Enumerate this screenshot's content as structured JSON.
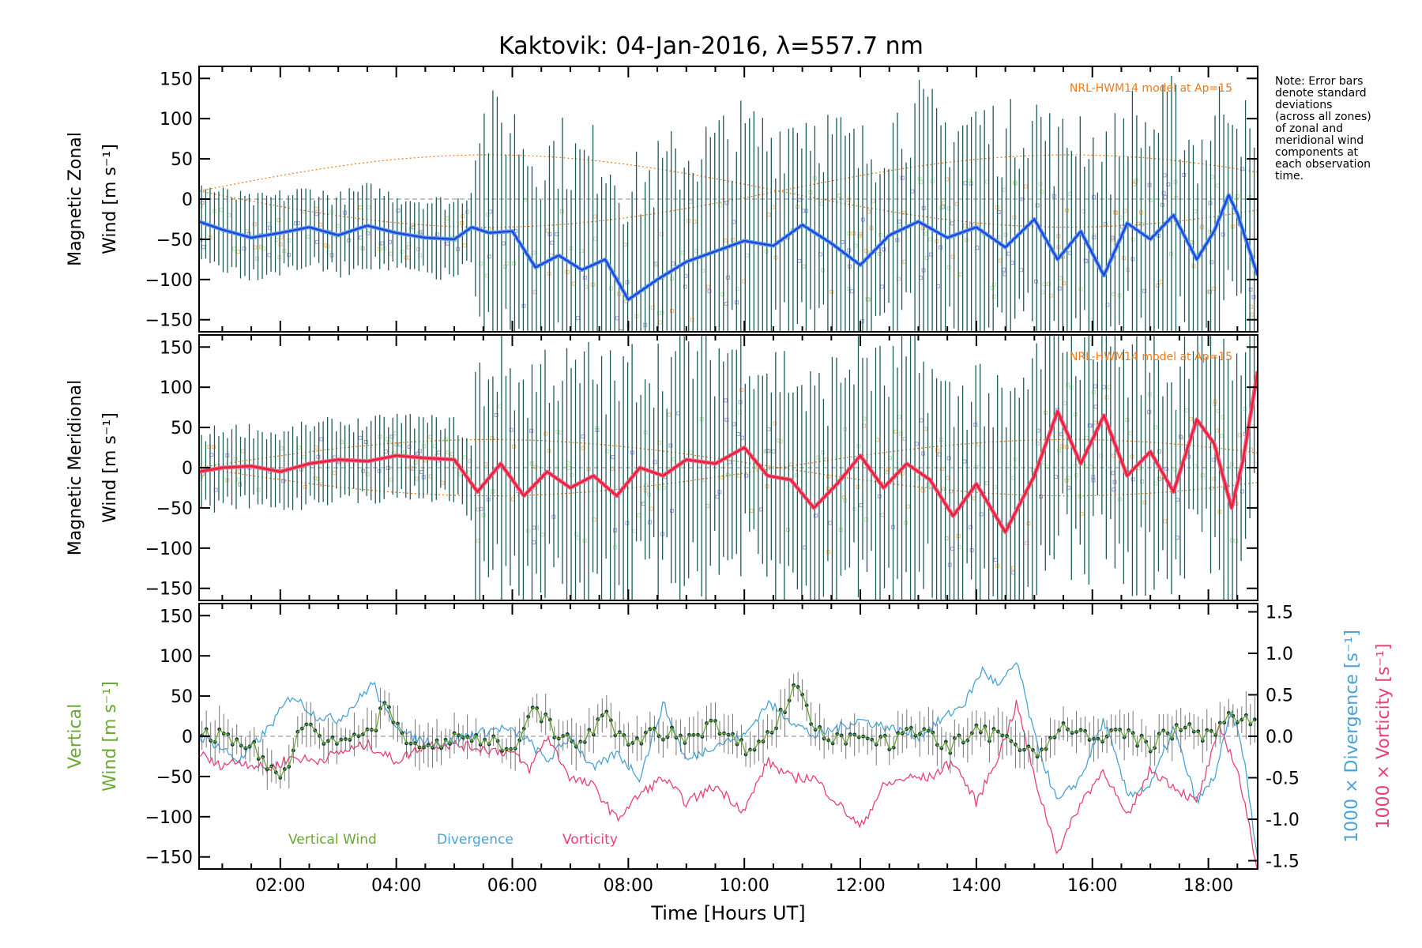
{
  "title": "Kaktovik: 04-Jan-2016, λ=557.7 nm",
  "note_lines": [
    "Note: Error bars",
    "denote standard",
    "deviations",
    "(across all zones)",
    "of zonal and",
    "meridional wind",
    "components at",
    "each observation",
    "time."
  ],
  "colors": {
    "zonal": "#1f3fe0",
    "zonal_light": "#5aa0e6",
    "meridional": "#e8202a",
    "meridional_light": "#f05a8a",
    "errorbar": "#1f5a5a",
    "vertical": "#6aa832",
    "divergence": "#4aa3d6",
    "vorticity": "#e8407a",
    "model": "#f07a1a",
    "scatter_orange": "#f5c07a",
    "scatter_green": "#b8e8a8",
    "scatter_purple": "#a0a0e0"
  },
  "chart_data": [
    {
      "type": "line",
      "panel": "zonal",
      "ylabel_line1": "Magnetic Zonal",
      "ylabel_line2": "Wind [m s⁻¹]",
      "ylim": [
        -165,
        165
      ],
      "yticks": [
        -150,
        -100,
        -50,
        0,
        50,
        100,
        150
      ],
      "xlim": [
        0.6,
        18.85
      ],
      "model_label": "NRL-HWM14 model at Ap=15",
      "series": [
        {
          "x": [
            0.6,
            1.0,
            1.5,
            2.0,
            2.5,
            3.0,
            3.5,
            4.0,
            4.5,
            5.0,
            5.3,
            5.6,
            6.0,
            6.4,
            6.8,
            7.2,
            7.6,
            8.0,
            8.5,
            9.0,
            9.5,
            10.0,
            10.5,
            11.0,
            11.5,
            12.0,
            12.5,
            13.0,
            13.5,
            14.0,
            14.5,
            15.0,
            15.4,
            15.8,
            16.2,
            16.6,
            17.0,
            17.4,
            17.8,
            18.1,
            18.35,
            18.5,
            18.85
          ],
          "values": [
            -28,
            -38,
            -48,
            -42,
            -35,
            -45,
            -33,
            -42,
            -48,
            -50,
            -35,
            -42,
            -40,
            -85,
            -70,
            -88,
            -75,
            -125,
            -100,
            -78,
            -65,
            -52,
            -58,
            -32,
            -55,
            -82,
            -45,
            -28,
            -48,
            -35,
            -60,
            -25,
            -75,
            -40,
            -95,
            -30,
            -50,
            -20,
            -75,
            -40,
            5,
            -18,
            -95
          ]
        }
      ]
    },
    {
      "type": "line",
      "panel": "meridional",
      "ylabel_line1": "Magnetic Meridional",
      "ylabel_line2": "Wind [m s⁻¹]",
      "ylim": [
        -165,
        165
      ],
      "yticks": [
        -150,
        -100,
        -50,
        0,
        50,
        100,
        150
      ],
      "xlim": [
        0.6,
        18.85
      ],
      "model_label": "NRL-HWM14 model at Ap=15",
      "series": [
        {
          "x": [
            0.6,
            1.0,
            1.5,
            2.0,
            2.5,
            3.0,
            3.5,
            4.0,
            4.5,
            5.0,
            5.4,
            5.8,
            6.2,
            6.6,
            7.0,
            7.4,
            7.8,
            8.2,
            8.6,
            9.0,
            9.5,
            10.0,
            10.4,
            10.8,
            11.2,
            11.6,
            12.0,
            12.4,
            12.8,
            13.2,
            13.6,
            14.0,
            14.5,
            15.0,
            15.4,
            15.8,
            16.2,
            16.6,
            17.0,
            17.4,
            17.8,
            18.1,
            18.4,
            18.6,
            18.85
          ],
          "values": [
            -5,
            0,
            2,
            -5,
            5,
            10,
            8,
            15,
            12,
            10,
            -30,
            5,
            -35,
            -5,
            -25,
            -10,
            -35,
            0,
            -10,
            10,
            5,
            25,
            -10,
            -15,
            -50,
            -20,
            15,
            -25,
            5,
            -15,
            -60,
            -20,
            -80,
            -10,
            70,
            5,
            65,
            -10,
            20,
            -30,
            60,
            30,
            -50,
            10,
            120
          ]
        }
      ]
    },
    {
      "type": "line",
      "panel": "vertical",
      "ylabel_line1": "Vertical",
      "ylabel_line2": "Wind [m s⁻¹]",
      "ylim": [
        -165,
        165
      ],
      "yticks": [
        -150,
        -100,
        -50,
        0,
        50,
        100,
        150
      ],
      "y2label_div": "1000 × Divergence [s⁻¹]",
      "y2label_vort": "1000 × Vorticity [s⁻¹]",
      "y2lim": [
        -1.6,
        1.6
      ],
      "y2ticks": [
        -1.5,
        -1.0,
        -0.5,
        0.0,
        0.5,
        1.0,
        1.5
      ],
      "xlim": [
        0.6,
        18.85
      ],
      "xticks": [
        2,
        4,
        6,
        8,
        10,
        12,
        14,
        16,
        18
      ],
      "xticklabels": [
        "02:00",
        "04:00",
        "06:00",
        "08:00",
        "10:00",
        "12:00",
        "14:00",
        "16:00",
        "18:00"
      ],
      "xlabel": "Time [Hours UT]",
      "legend": [
        "Vertical Wind",
        "Divergence",
        "Vorticity"
      ],
      "series": [
        {
          "name": "Vertical Wind",
          "x": [
            0.6,
            1.0,
            1.5,
            2.0,
            2.4,
            2.8,
            3.2,
            3.6,
            3.8,
            4.2,
            4.8,
            5.2,
            5.6,
            6.0,
            6.4,
            6.8,
            7.2,
            7.6,
            8.0,
            8.5,
            9.0,
            9.5,
            10.0,
            10.5,
            10.9,
            11.2,
            11.6,
            12.0,
            12.5,
            13.0,
            13.5,
            14.0,
            14.5,
            15.0,
            15.5,
            16.0,
            16.5,
            17.0,
            17.5,
            18.0,
            18.4,
            18.85
          ],
          "values": [
            5,
            0,
            -10,
            -55,
            15,
            -10,
            0,
            5,
            40,
            -10,
            -10,
            0,
            -5,
            -15,
            35,
            0,
            -10,
            25,
            -10,
            5,
            0,
            15,
            -15,
            5,
            70,
            10,
            -5,
            5,
            -10,
            10,
            -15,
            5,
            0,
            -20,
            10,
            -5,
            5,
            -10,
            10,
            0,
            30,
            10
          ]
        },
        {
          "name": "Divergence",
          "x": [
            0.6,
            0.9,
            1.3,
            1.8,
            2.2,
            2.6,
            3.0,
            3.3,
            3.6,
            3.8,
            4.2,
            4.8,
            5.2,
            5.8,
            6.2,
            6.6,
            7.0,
            7.4,
            7.8,
            8.2,
            8.6,
            9.0,
            9.5,
            10.0,
            10.4,
            10.8,
            11.2,
            11.6,
            12.0,
            12.5,
            13.0,
            13.4,
            13.8,
            14.1,
            14.4,
            14.7,
            15.0,
            15.4,
            15.8,
            16.2,
            16.6,
            17.0,
            17.4,
            17.8,
            18.1,
            18.4,
            18.6,
            18.85
          ],
          "values": [
            0.0,
            -0.1,
            -0.3,
            0.1,
            0.5,
            0.25,
            0.2,
            0.4,
            0.65,
            0.3,
            0.0,
            -0.1,
            0.0,
            0.1,
            0.0,
            -0.3,
            0.0,
            -0.4,
            -0.2,
            -0.5,
            0.4,
            -0.3,
            -0.1,
            0.0,
            0.4,
            0.2,
            0.0,
            0.1,
            0.2,
            0.1,
            0.0,
            0.2,
            0.4,
            0.8,
            0.6,
            0.9,
            0.0,
            -0.8,
            -0.5,
            0.2,
            -0.7,
            -0.6,
            0.1,
            -0.8,
            -0.5,
            0.3,
            -0.2,
            -1.5
          ]
        },
        {
          "name": "Vorticity",
          "x": [
            0.6,
            0.9,
            1.3,
            1.8,
            2.2,
            2.6,
            3.0,
            3.5,
            4.0,
            4.5,
            5.0,
            5.5,
            6.0,
            6.3,
            6.6,
            7.0,
            7.4,
            7.8,
            8.2,
            8.6,
            9.0,
            9.5,
            10.0,
            10.4,
            10.8,
            11.2,
            11.6,
            12.0,
            12.4,
            12.8,
            13.2,
            13.6,
            14.0,
            14.4,
            14.7,
            15.0,
            15.4,
            15.8,
            16.2,
            16.6,
            17.0,
            17.4,
            17.8,
            18.2,
            18.5,
            18.85
          ],
          "values": [
            -0.2,
            -0.35,
            -0.3,
            -0.4,
            -0.25,
            -0.3,
            -0.2,
            -0.1,
            -0.3,
            -0.1,
            -0.1,
            -0.15,
            -0.2,
            -0.4,
            0.0,
            -0.5,
            -0.6,
            -1.0,
            -0.7,
            -0.5,
            -0.8,
            -0.6,
            -0.9,
            -0.3,
            -0.5,
            -0.5,
            -0.8,
            -1.1,
            -0.6,
            -0.5,
            -0.5,
            -0.3,
            -0.8,
            -0.2,
            0.4,
            -0.5,
            -1.4,
            -0.8,
            -0.4,
            -1.0,
            -0.4,
            -0.6,
            -0.8,
            0.1,
            -0.4,
            -1.6
          ]
        }
      ]
    }
  ]
}
